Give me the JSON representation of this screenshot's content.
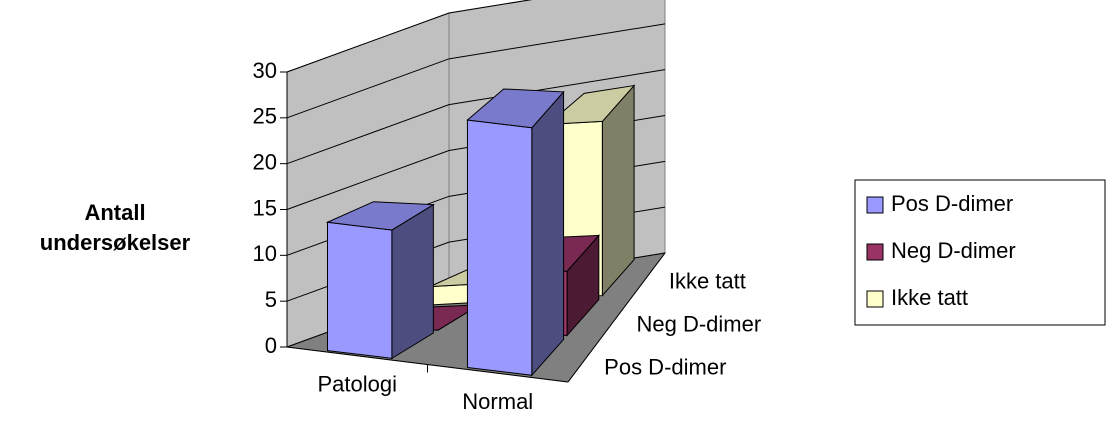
{
  "chart_data": {
    "type": "bar",
    "ylabel": "Antall undersøkelser",
    "categories": [
      "Patologi",
      "Normal"
    ],
    "series": [
      {
        "name": "Pos D-dimer",
        "color": "#9999ff",
        "values": [
          14,
          27
        ]
      },
      {
        "name": "Neg D-dimer",
        "color": "#993366",
        "values": [
          0,
          7
        ]
      },
      {
        "name": "Ikke tatt",
        "color": "#ffffcc",
        "values": [
          2,
          19
        ]
      }
    ],
    "ylim": [
      0,
      30
    ],
    "yticks": [
      0,
      5,
      10,
      15,
      20,
      25,
      30
    ],
    "grid": true,
    "legend": "right"
  }
}
